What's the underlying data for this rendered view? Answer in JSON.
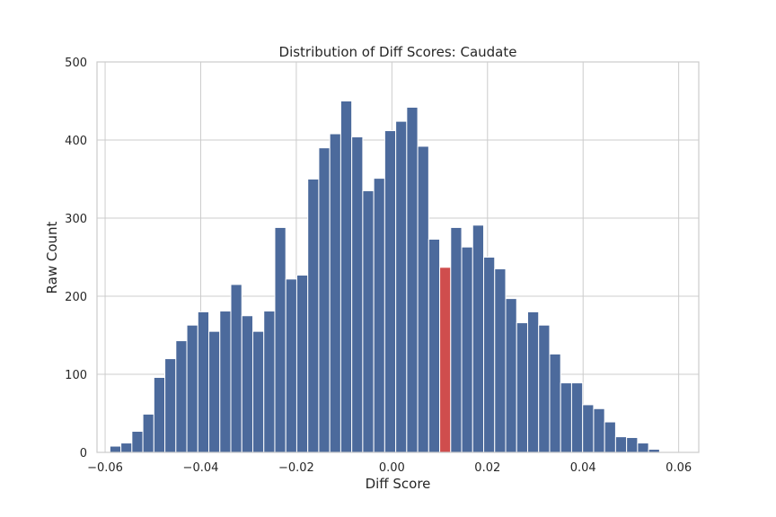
{
  "chart_data": {
    "type": "bar",
    "title": "Distribution of Diff Scores: Caudate",
    "xlabel": "Diff Score",
    "ylabel": "Raw Count",
    "xlim": [
      -0.0617,
      0.0642
    ],
    "ylim": [
      0,
      500
    ],
    "xticks": [
      -0.06,
      -0.04,
      -0.02,
      0.0,
      0.02,
      0.04,
      0.06
    ],
    "xtick_labels": [
      "−0.06",
      "−0.04",
      "−0.02",
      "0.00",
      "0.02",
      "0.04",
      "0.06"
    ],
    "yticks": [
      0,
      100,
      200,
      300,
      400,
      500
    ],
    "ytick_labels": [
      "0",
      "100",
      "200",
      "300",
      "400",
      "500"
    ],
    "grid": true,
    "bin_start": -0.059,
    "bin_width": 0.0023,
    "values": [
      8,
      12,
      27,
      49,
      96,
      120,
      143,
      163,
      180,
      155,
      181,
      215,
      175,
      155,
      181,
      288,
      222,
      227,
      350,
      390,
      408,
      450,
      404,
      335,
      351,
      412,
      424,
      442,
      392,
      273,
      237,
      288,
      263,
      291,
      250,
      235,
      197,
      166,
      180,
      163,
      126,
      89,
      89,
      61,
      56,
      39,
      20,
      19,
      12,
      4
    ],
    "bar_color": "#4c6a9c",
    "highlight_index": 30,
    "highlight_color": "#cf4d4d"
  }
}
